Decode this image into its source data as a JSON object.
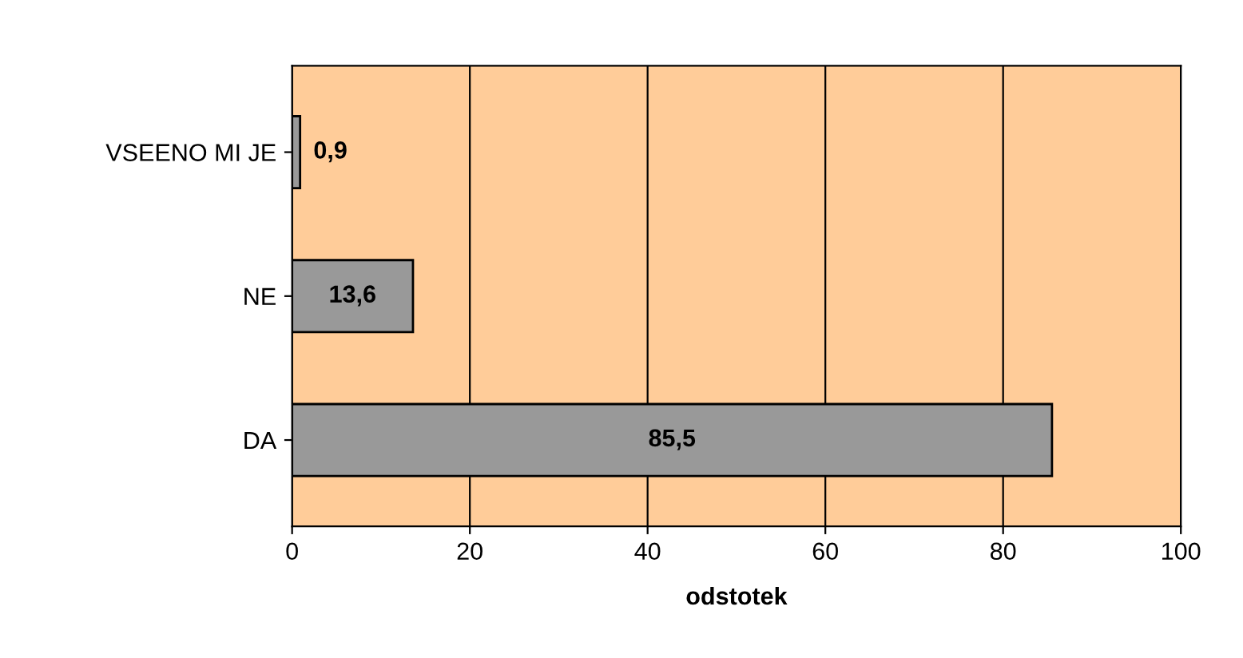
{
  "chart_data": {
    "type": "bar",
    "orientation": "horizontal",
    "xlabel": "odstotek",
    "categories": [
      "VSEENO MI JE",
      "NE",
      "DA"
    ],
    "series": [
      {
        "color": "#999999",
        "values": [
          0.9,
          13.6,
          85.5
        ],
        "value_labels": [
          "0,9",
          "13,6",
          "85,5"
        ]
      }
    ],
    "xlim": [
      0,
      100
    ],
    "xticks": [
      0,
      20,
      40,
      60,
      80,
      100
    ],
    "grid": "x",
    "legend": false
  }
}
